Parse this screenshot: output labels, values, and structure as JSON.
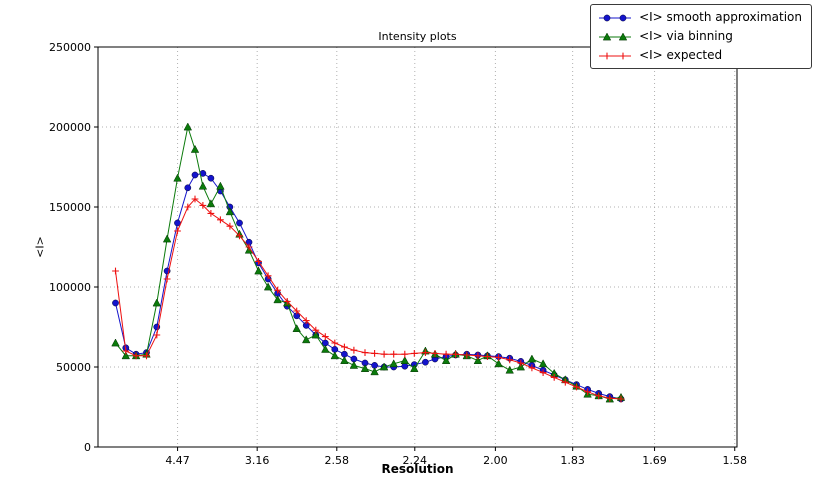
{
  "chart_data": {
    "type": "line",
    "title": "Intensity plots",
    "xlabel": "Resolution",
    "ylabel": "<I>",
    "grid": "dotted",
    "legend_position": "top-right",
    "x_axis": {
      "min": 0,
      "max": 0.402,
      "unit": "1/d^2 (labeled as resolution d in A)",
      "ticks": [
        {
          "label": "4.47",
          "value": 0.05006
        },
        {
          "label": "3.16",
          "value": 0.10014
        },
        {
          "label": "2.58",
          "value": 0.15023
        },
        {
          "label": "2.24",
          "value": 0.1993
        },
        {
          "label": "2.00",
          "value": 0.25
        },
        {
          "label": "1.83",
          "value": 0.29861
        },
        {
          "label": "1.69",
          "value": 0.35013
        },
        {
          "label": "1.58",
          "value": 0.40058
        }
      ]
    },
    "y_axis": {
      "min": 0,
      "max": 250000,
      "ticks": [
        {
          "label": "0",
          "value": 0
        },
        {
          "label": "50000",
          "value": 50000
        },
        {
          "label": "100000",
          "value": 100000
        },
        {
          "label": "150000",
          "value": 150000
        },
        {
          "label": "200000",
          "value": 200000
        },
        {
          "label": "250000",
          "value": 250000
        }
      ]
    },
    "x": [
      0.011,
      0.0175,
      0.024,
      0.0305,
      0.037,
      0.0435,
      0.05,
      0.0565,
      0.061,
      0.066,
      0.071,
      0.077,
      0.083,
      0.089,
      0.095,
      0.101,
      0.107,
      0.113,
      0.119,
      0.125,
      0.131,
      0.137,
      0.143,
      0.149,
      0.155,
      0.161,
      0.168,
      0.174,
      0.18,
      0.186,
      0.193,
      0.199,
      0.206,
      0.212,
      0.219,
      0.225,
      0.232,
      0.239,
      0.245,
      0.252,
      0.259,
      0.266,
      0.273,
      0.28,
      0.287,
      0.294,
      0.301,
      0.308,
      0.315,
      0.322,
      0.329
    ],
    "series": [
      {
        "name": "<I> smooth approximation",
        "color": "#1414cc",
        "marker": "circle",
        "values": [
          90000,
          62000,
          58000,
          59000,
          75000,
          110000,
          140000,
          162000,
          170000,
          171000,
          168000,
          160000,
          150000,
          140000,
          128000,
          115000,
          105000,
          96000,
          88000,
          82000,
          76000,
          70000,
          65000,
          61000,
          58000,
          55000,
          52500,
          51000,
          50000,
          50000,
          50500,
          51500,
          53000,
          55000,
          56500,
          57500,
          58000,
          57500,
          57000,
          56500,
          55500,
          53500,
          51000,
          48000,
          45000,
          42000,
          39000,
          36000,
          33500,
          31500,
          30000
        ]
      },
      {
        "name": "<I> via binning",
        "color": "#0b7a0b",
        "marker": "triangle",
        "values": [
          65000,
          57000,
          57000,
          58000,
          90000,
          130000,
          168000,
          200000,
          186000,
          163000,
          152000,
          163000,
          147000,
          133000,
          123000,
          110000,
          100000,
          92000,
          90000,
          74000,
          67000,
          70000,
          61000,
          57000,
          54000,
          51000,
          49000,
          47000,
          50000,
          52000,
          54000,
          49000,
          60000,
          58000,
          54000,
          58000,
          57000,
          54000,
          57000,
          52000,
          48000,
          50000,
          55000,
          52000,
          46000,
          42000,
          38000,
          33000,
          32000,
          30000,
          31000
        ]
      },
      {
        "name": "<I> expected",
        "color": "#ee1111",
        "marker": "plus",
        "values": [
          110000,
          60000,
          57000,
          57000,
          70000,
          105000,
          135000,
          150000,
          155000,
          151000,
          146000,
          142000,
          138000,
          132000,
          125000,
          116000,
          107000,
          98000,
          91000,
          85000,
          79000,
          73000,
          69000,
          65000,
          62500,
          60500,
          59000,
          58500,
          58000,
          58000,
          58000,
          58500,
          59000,
          58500,
          58000,
          58000,
          57500,
          57000,
          56500,
          56000,
          54500,
          52500,
          49500,
          46500,
          43500,
          40500,
          37500,
          34500,
          32000,
          30500,
          30000
        ]
      }
    ]
  }
}
